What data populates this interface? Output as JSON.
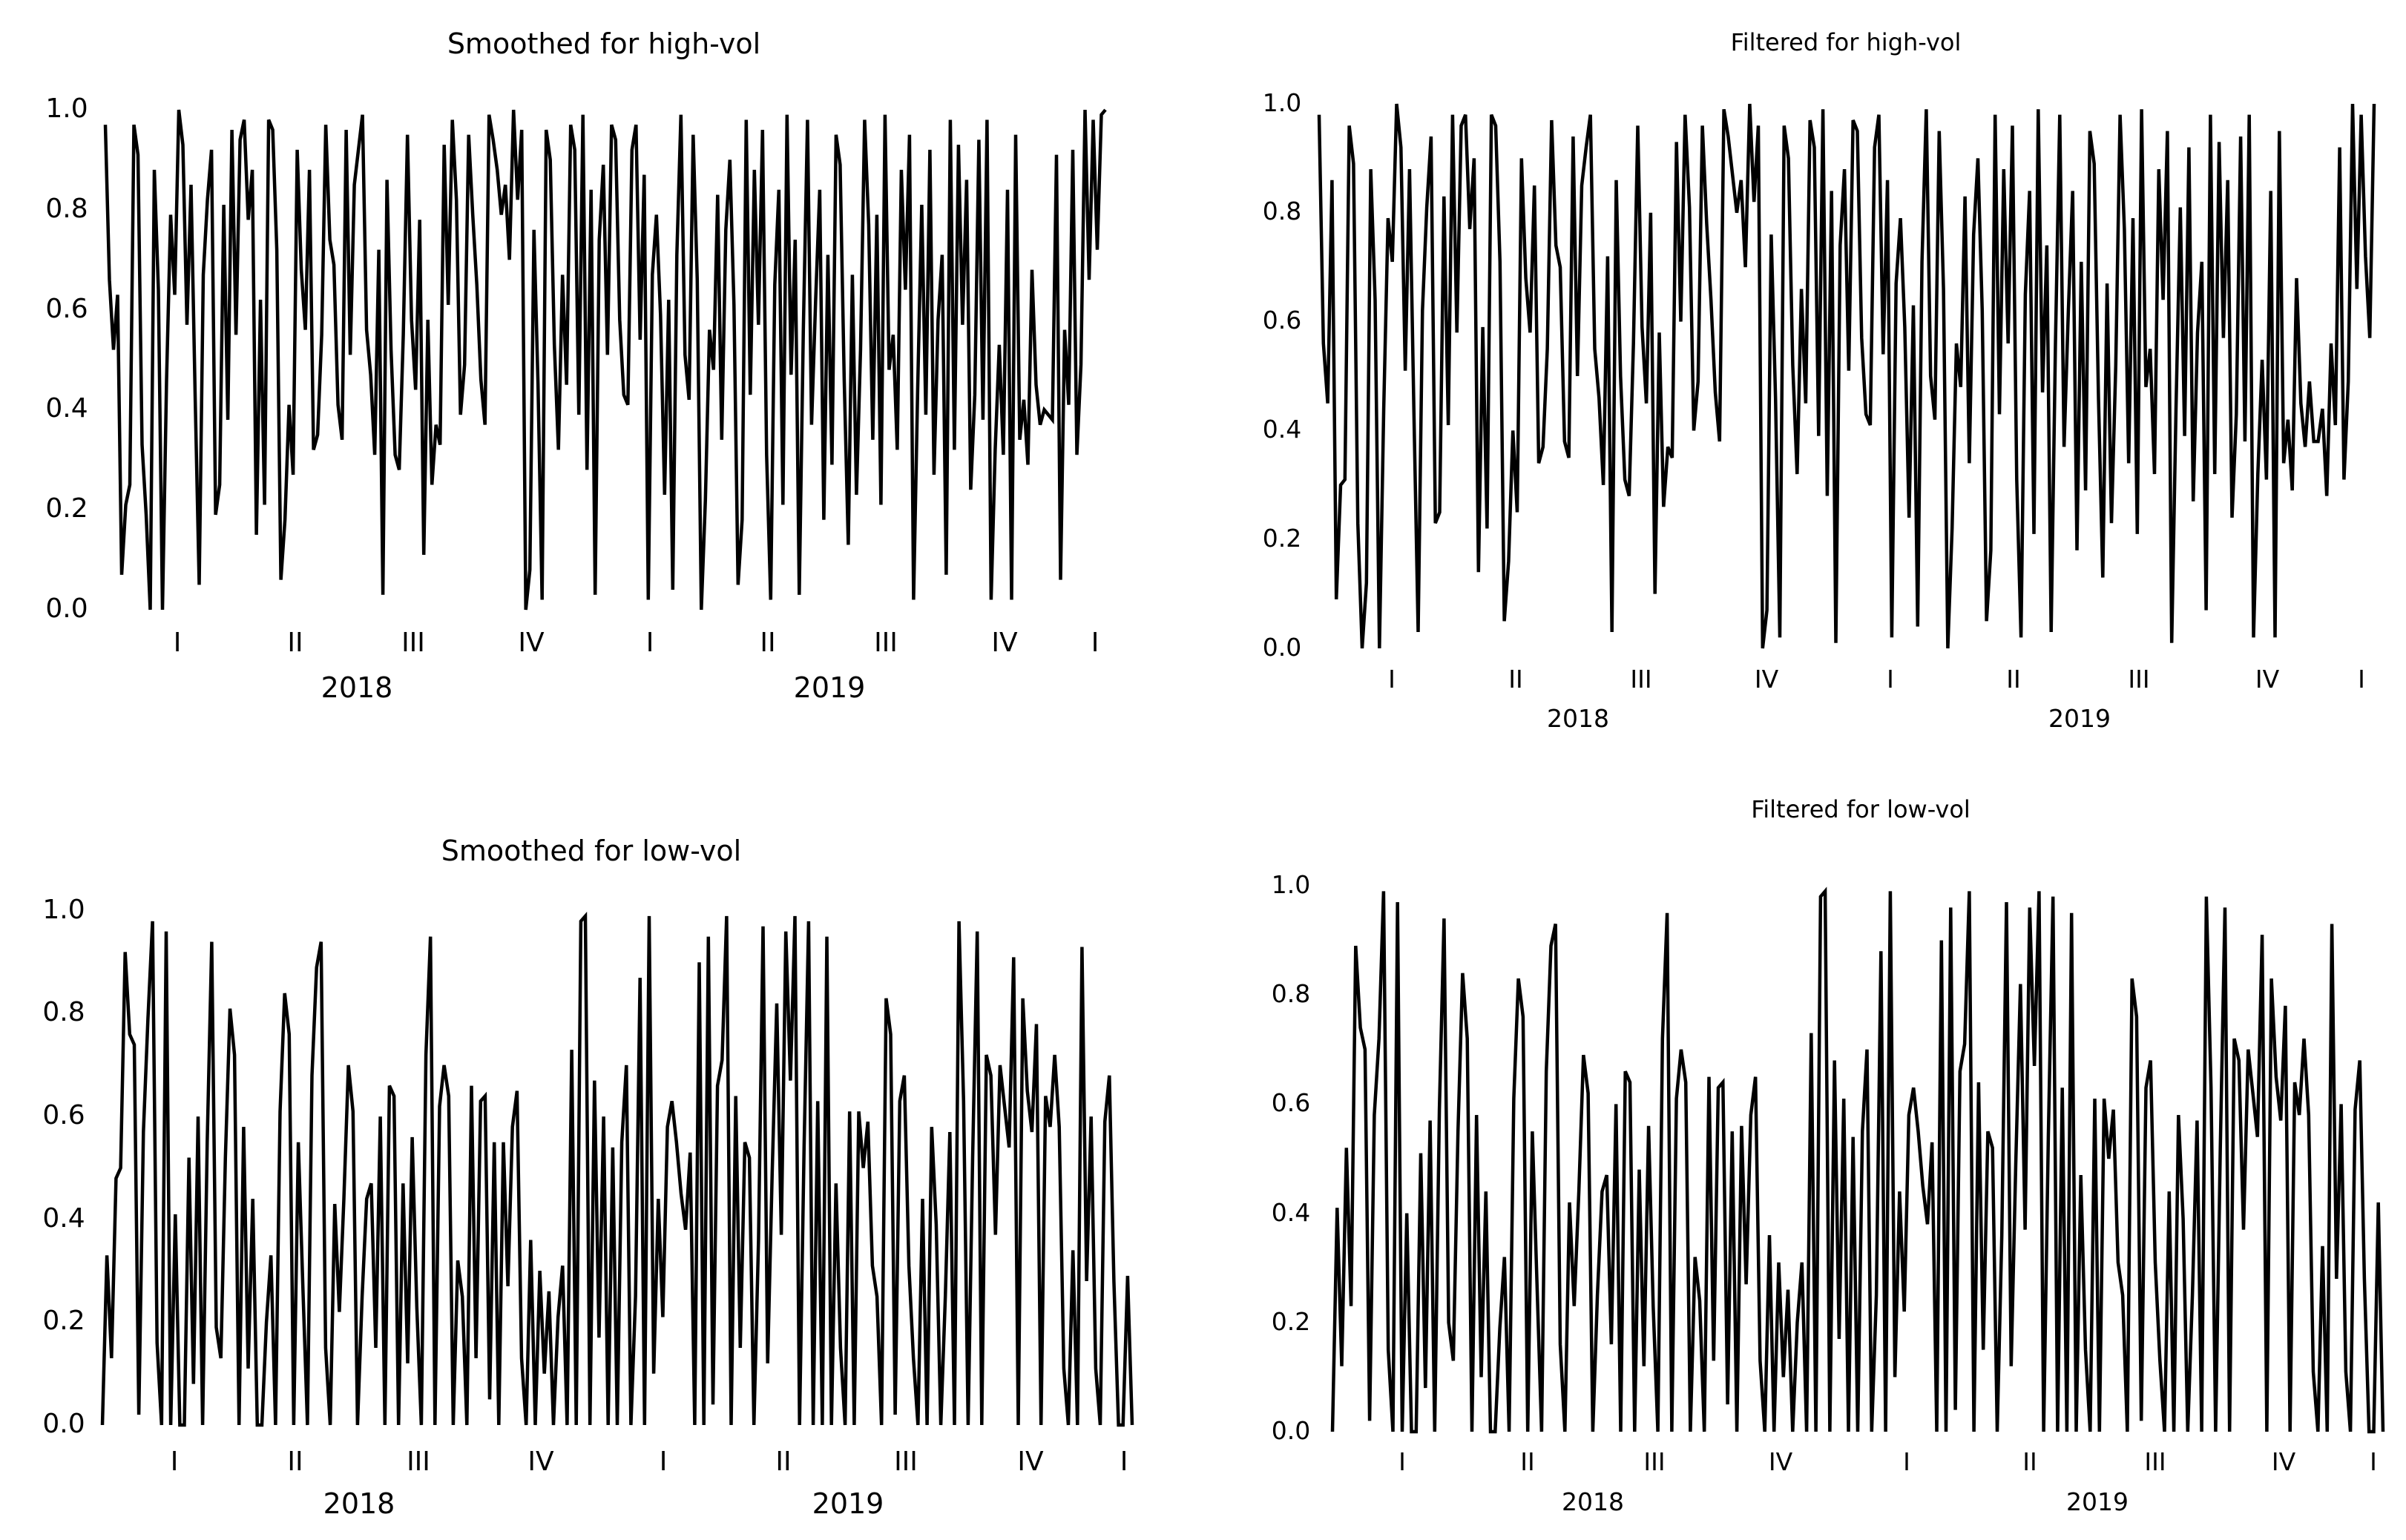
{
  "page": {
    "background": "#ffffff",
    "line_color": "#000000"
  },
  "chart_data": [
    {
      "type": "line",
      "title": "Smoothed for high-vol",
      "xlabel": "",
      "ylabel": "",
      "ylim": [
        0,
        1
      ],
      "yticks": [
        "0.0",
        "0.2",
        "0.4",
        "0.6",
        "0.8",
        "1.0"
      ],
      "quarter_labels": [
        "I",
        "II",
        "III",
        "IV",
        "I",
        "II",
        "III",
        "IV",
        "I"
      ],
      "year_labels": [
        "2018",
        "2019"
      ],
      "grid": false,
      "legend": "none",
      "series": [
        {
          "values": [
            0.97,
            0.66,
            0.52,
            0.63,
            0.07,
            0.21,
            0.25,
            0.97,
            0.91,
            0.33,
            0.19,
            0.0,
            0.88,
            0.64,
            0.0,
            0.46,
            0.79,
            0.63,
            1.0,
            0.93,
            0.57,
            0.85,
            0.43,
            0.05,
            0.67,
            0.82,
            0.92,
            0.19,
            0.25,
            0.81,
            0.38,
            0.96,
            0.55,
            0.94,
            0.98,
            0.78,
            0.88,
            0.15,
            0.62,
            0.21,
            0.98,
            0.96,
            0.72,
            0.06,
            0.18,
            0.41,
            0.27,
            0.92,
            0.68,
            0.56,
            0.88,
            0.32,
            0.35,
            0.55,
            0.97,
            0.74,
            0.69,
            0.41,
            0.34,
            0.96,
            0.51,
            0.85,
            0.92,
            0.99,
            0.56,
            0.47,
            0.31,
            0.72,
            0.03,
            0.86,
            0.52,
            0.31,
            0.28,
            0.55,
            0.95,
            0.58,
            0.44,
            0.78,
            0.11,
            0.58,
            0.25,
            0.37,
            0.33,
            0.93,
            0.61,
            0.98,
            0.82,
            0.39,
            0.49,
            0.95,
            0.79,
            0.65,
            0.46,
            0.37,
            0.99,
            0.94,
            0.88,
            0.79,
            0.85,
            0.7,
            1.0,
            0.82,
            0.96,
            0.0,
            0.08,
            0.76,
            0.45,
            0.02,
            0.96,
            0.9,
            0.53,
            0.32,
            0.67,
            0.45,
            0.97,
            0.92,
            0.39,
            0.99,
            0.28,
            0.84,
            0.03,
            0.74,
            0.89,
            0.51,
            0.97,
            0.94,
            0.58,
            0.43,
            0.41,
            0.92,
            0.97,
            0.54,
            0.87,
            0.02,
            0.67,
            0.79,
            0.59,
            0.23,
            0.62,
            0.04,
            0.71,
            0.99,
            0.51,
            0.42,
            0.95,
            0.66,
            0.0,
            0.22,
            0.56,
            0.48,
            0.83,
            0.34,
            0.76,
            0.9,
            0.61,
            0.05,
            0.18,
            0.98,
            0.43,
            0.88,
            0.57,
            0.96,
            0.31,
            0.02,
            0.65,
            0.84,
            0.21,
            0.99,
            0.47,
            0.74,
            0.03,
            0.56,
            0.98,
            0.37,
            0.62,
            0.84,
            0.18,
            0.71,
            0.29,
            0.95,
            0.89,
            0.46,
            0.13,
            0.67,
            0.23,
            0.52,
            0.98,
            0.77,
            0.34,
            0.79,
            0.21,
            0.99,
            0.48,
            0.55,
            0.32,
            0.88,
            0.64,
            0.95,
            0.02,
            0.44,
            0.81,
            0.39,
            0.92,
            0.27,
            0.58,
            0.71,
            0.07,
            0.98,
            0.32,
            0.93,
            0.57,
            0.86,
            0.24,
            0.43,
            0.94,
            0.38,
            0.98,
            0.02,
            0.32,
            0.53,
            0.31,
            0.84,
            0.02,
            0.95,
            0.34,
            0.42,
            0.29,
            0.68,
            0.45,
            0.37,
            0.4,
            0.39,
            0.38,
            0.91,
            0.06,
            0.56,
            0.41,
            0.92,
            0.31,
            0.49,
            1.0,
            0.66,
            0.98,
            0.72,
            0.99,
            1.0
          ]
        }
      ]
    },
    {
      "type": "line",
      "title": "Filtered for high-vol",
      "xlabel": "",
      "ylabel": "",
      "ylim": [
        0,
        1
      ],
      "yticks": [
        "0.0",
        "0.2",
        "0.4",
        "0.6",
        "0.8",
        "1.0"
      ],
      "quarter_labels": [
        "I",
        "II",
        "III",
        "IV",
        "I",
        "II",
        "III",
        "IV",
        "I"
      ],
      "year_labels": [
        "2018",
        "2019"
      ],
      "grid": false,
      "legend": "none",
      "series": [
        {
          "values": [
            0.98,
            0.56,
            0.45,
            0.86,
            0.09,
            0.3,
            0.31,
            0.96,
            0.89,
            0.23,
            0.0,
            0.12,
            0.88,
            0.64,
            0.0,
            0.44,
            0.79,
            0.71,
            1.0,
            0.92,
            0.51,
            0.88,
            0.44,
            0.03,
            0.62,
            0.81,
            0.94,
            0.23,
            0.25,
            0.83,
            0.41,
            0.98,
            0.58,
            0.96,
            0.98,
            0.77,
            0.9,
            0.14,
            0.59,
            0.22,
            0.98,
            0.96,
            0.71,
            0.05,
            0.16,
            0.4,
            0.25,
            0.9,
            0.68,
            0.58,
            0.85,
            0.34,
            0.37,
            0.55,
            0.97,
            0.74,
            0.7,
            0.38,
            0.35,
            0.94,
            0.5,
            0.85,
            0.92,
            0.98,
            0.55,
            0.46,
            0.3,
            0.72,
            0.03,
            0.86,
            0.5,
            0.31,
            0.28,
            0.56,
            0.96,
            0.59,
            0.45,
            0.8,
            0.1,
            0.58,
            0.26,
            0.37,
            0.35,
            0.93,
            0.6,
            0.98,
            0.81,
            0.4,
            0.49,
            0.96,
            0.78,
            0.64,
            0.47,
            0.38,
            0.99,
            0.94,
            0.87,
            0.8,
            0.86,
            0.7,
            1.0,
            0.82,
            0.96,
            0.0,
            0.07,
            0.76,
            0.46,
            0.02,
            0.96,
            0.9,
            0.52,
            0.32,
            0.66,
            0.45,
            0.97,
            0.92,
            0.39,
            0.99,
            0.28,
            0.84,
            0.01,
            0.74,
            0.88,
            0.51,
            0.97,
            0.95,
            0.57,
            0.43,
            0.41,
            0.92,
            0.98,
            0.54,
            0.86,
            0.02,
            0.67,
            0.79,
            0.59,
            0.24,
            0.63,
            0.04,
            0.71,
            0.99,
            0.5,
            0.42,
            0.95,
            0.66,
            0.0,
            0.22,
            0.56,
            0.48,
            0.83,
            0.34,
            0.76,
            0.9,
            0.62,
            0.05,
            0.18,
            0.98,
            0.43,
            0.88,
            0.56,
            0.96,
            0.31,
            0.02,
            0.65,
            0.84,
            0.21,
            0.99,
            0.47,
            0.74,
            0.03,
            0.56,
            0.98,
            0.37,
            0.62,
            0.84,
            0.18,
            0.71,
            0.29,
            0.95,
            0.89,
            0.46,
            0.13,
            0.67,
            0.23,
            0.52,
            0.98,
            0.77,
            0.34,
            0.79,
            0.21,
            0.99,
            0.48,
            0.55,
            0.32,
            0.88,
            0.64,
            0.95,
            0.01,
            0.44,
            0.81,
            0.39,
            0.92,
            0.27,
            0.58,
            0.71,
            0.07,
            0.98,
            0.32,
            0.93,
            0.57,
            0.86,
            0.24,
            0.43,
            0.94,
            0.38,
            0.98,
            0.02,
            0.32,
            0.53,
            0.31,
            0.84,
            0.02,
            0.95,
            0.34,
            0.42,
            0.29,
            0.68,
            0.45,
            0.37,
            0.49,
            0.38,
            0.38,
            0.44,
            0.28,
            0.56,
            0.41,
            0.92,
            0.31,
            0.49,
            1.0,
            0.66,
            0.98,
            0.72,
            0.57,
            1.0
          ]
        }
      ]
    },
    {
      "type": "line",
      "title": "Smoothed for low-vol",
      "xlabel": "",
      "ylabel": "",
      "ylim": [
        0,
        1
      ],
      "yticks": [
        "0.0",
        "0.2",
        "0.4",
        "0.6",
        "0.8",
        "1.0"
      ],
      "quarter_labels": [
        "I",
        "II",
        "III",
        "IV",
        "I",
        "II",
        "III",
        "IV",
        "I"
      ],
      "year_labels": [
        "2018",
        "2019"
      ],
      "grid": false,
      "legend": "none",
      "series": [
        {
          "values": [
            0.0,
            0.33,
            0.13,
            0.48,
            0.5,
            0.92,
            0.76,
            0.74,
            0.02,
            0.57,
            0.79,
            0.98,
            0.16,
            0.0,
            0.96,
            0.0,
            0.41,
            0.0,
            0.0,
            0.52,
            0.08,
            0.6,
            0.0,
            0.55,
            0.94,
            0.19,
            0.13,
            0.52,
            0.81,
            0.72,
            0.0,
            0.58,
            0.11,
            0.44,
            0.0,
            0.0,
            0.2,
            0.33,
            0.0,
            0.61,
            0.84,
            0.76,
            0.0,
            0.55,
            0.27,
            0.0,
            0.68,
            0.89,
            0.94,
            0.15,
            0.0,
            0.43,
            0.22,
            0.44,
            0.7,
            0.61,
            0.0,
            0.25,
            0.44,
            0.47,
            0.15,
            0.6,
            0.0,
            0.66,
            0.64,
            0.0,
            0.47,
            0.12,
            0.56,
            0.23,
            0.0,
            0.72,
            0.95,
            0.0,
            0.62,
            0.7,
            0.64,
            0.0,
            0.32,
            0.25,
            0.0,
            0.66,
            0.13,
            0.63,
            0.64,
            0.05,
            0.55,
            0.0,
            0.55,
            0.27,
            0.58,
            0.65,
            0.13,
            0.0,
            0.36,
            0.0,
            0.3,
            0.1,
            0.26,
            0.0,
            0.21,
            0.31,
            0.0,
            0.73,
            0.0,
            0.98,
            0.99,
            0.0,
            0.67,
            0.17,
            0.6,
            0.0,
            0.54,
            0.0,
            0.55,
            0.7,
            0.0,
            0.25,
            0.87,
            0.0,
            0.99,
            0.1,
            0.44,
            0.21,
            0.58,
            0.63,
            0.55,
            0.45,
            0.38,
            0.53,
            0.0,
            0.9,
            0.0,
            0.95,
            0.04,
            0.66,
            0.71,
            0.99,
            0.0,
            0.64,
            0.15,
            0.55,
            0.52,
            0.0,
            0.36,
            0.97,
            0.12,
            0.49,
            0.82,
            0.37,
            0.96,
            0.67,
            0.99,
            0.0,
            0.54,
            0.98,
            0.0,
            0.63,
            0.0,
            0.95,
            0.0,
            0.47,
            0.15,
            0.0,
            0.61,
            0.0,
            0.61,
            0.5,
            0.59,
            0.31,
            0.25,
            0.0,
            0.83,
            0.76,
            0.02,
            0.63,
            0.68,
            0.31,
            0.13,
            0.0,
            0.44,
            0.0,
            0.58,
            0.39,
            0.0,
            0.25,
            0.57,
            0.0,
            0.98,
            0.63,
            0.0,
            0.52,
            0.96,
            0.0,
            0.72,
            0.68,
            0.37,
            0.7,
            0.62,
            0.54,
            0.91,
            0.0,
            0.83,
            0.65,
            0.57,
            0.78,
            0.0,
            0.64,
            0.58,
            0.72,
            0.58,
            0.11,
            0.0,
            0.34,
            0.0,
            0.93,
            0.28,
            0.6,
            0.11,
            0.0,
            0.59,
            0.68,
            0.28,
            0.0,
            0.0,
            0.29,
            0.0
          ]
        }
      ]
    },
    {
      "type": "line",
      "title": "Filtered for low-vol",
      "xlabel": "",
      "ylabel": "",
      "ylim": [
        0,
        1
      ],
      "yticks": [
        "0.0",
        "0.2",
        "0.4",
        "0.6",
        "0.8",
        "1.0"
      ],
      "quarter_labels": [
        "I",
        "II",
        "III",
        "IV",
        "I",
        "II",
        "III",
        "IV",
        "I"
      ],
      "year_labels": [
        "2018",
        "2019"
      ],
      "grid": false,
      "legend": "none",
      "series": [
        {
          "values": [
            0.0,
            0.41,
            0.12,
            0.52,
            0.23,
            0.89,
            0.74,
            0.7,
            0.02,
            0.58,
            0.72,
            0.99,
            0.15,
            0.0,
            0.97,
            0.0,
            0.4,
            0.0,
            0.0,
            0.51,
            0.08,
            0.57,
            0.0,
            0.59,
            0.94,
            0.2,
            0.13,
            0.55,
            0.84,
            0.72,
            0.0,
            0.58,
            0.1,
            0.44,
            0.0,
            0.0,
            0.19,
            0.32,
            0.0,
            0.61,
            0.83,
            0.76,
            0.0,
            0.55,
            0.27,
            0.0,
            0.66,
            0.89,
            0.93,
            0.16,
            0.0,
            0.42,
            0.23,
            0.44,
            0.69,
            0.62,
            0.0,
            0.25,
            0.44,
            0.47,
            0.16,
            0.6,
            0.0,
            0.66,
            0.64,
            0.0,
            0.48,
            0.12,
            0.56,
            0.23,
            0.0,
            0.72,
            0.95,
            0.0,
            0.61,
            0.7,
            0.64,
            0.0,
            0.32,
            0.24,
            0.0,
            0.65,
            0.13,
            0.63,
            0.64,
            0.05,
            0.55,
            0.0,
            0.56,
            0.27,
            0.58,
            0.65,
            0.13,
            0.0,
            0.36,
            0.0,
            0.31,
            0.1,
            0.26,
            0.0,
            0.2,
            0.31,
            0.0,
            0.73,
            0.0,
            0.98,
            0.99,
            0.0,
            0.68,
            0.17,
            0.61,
            0.0,
            0.54,
            0.0,
            0.55,
            0.7,
            0.0,
            0.25,
            0.88,
            0.0,
            0.99,
            0.1,
            0.44,
            0.22,
            0.58,
            0.63,
            0.55,
            0.45,
            0.38,
            0.53,
            0.0,
            0.9,
            0.0,
            0.96,
            0.04,
            0.66,
            0.71,
            0.99,
            0.0,
            0.64,
            0.15,
            0.55,
            0.52,
            0.0,
            0.36,
            0.97,
            0.12,
            0.49,
            0.82,
            0.37,
            0.96,
            0.67,
            0.99,
            0.0,
            0.54,
            0.98,
            0.0,
            0.63,
            0.0,
            0.95,
            0.0,
            0.47,
            0.15,
            0.0,
            0.61,
            0.0,
            0.61,
            0.5,
            0.59,
            0.31,
            0.25,
            0.0,
            0.83,
            0.76,
            0.02,
            0.63,
            0.68,
            0.31,
            0.13,
            0.0,
            0.44,
            0.0,
            0.58,
            0.39,
            0.0,
            0.25,
            0.57,
            0.0,
            0.98,
            0.63,
            0.0,
            0.52,
            0.96,
            0.0,
            0.72,
            0.68,
            0.37,
            0.7,
            0.62,
            0.54,
            0.91,
            0.0,
            0.83,
            0.65,
            0.57,
            0.78,
            0.0,
            0.64,
            0.58,
            0.72,
            0.58,
            0.11,
            0.0,
            0.34,
            0.0,
            0.93,
            0.28,
            0.6,
            0.11,
            0.0,
            0.59,
            0.68,
            0.28,
            0.0,
            0.0,
            0.42,
            0.0
          ]
        }
      ]
    }
  ]
}
